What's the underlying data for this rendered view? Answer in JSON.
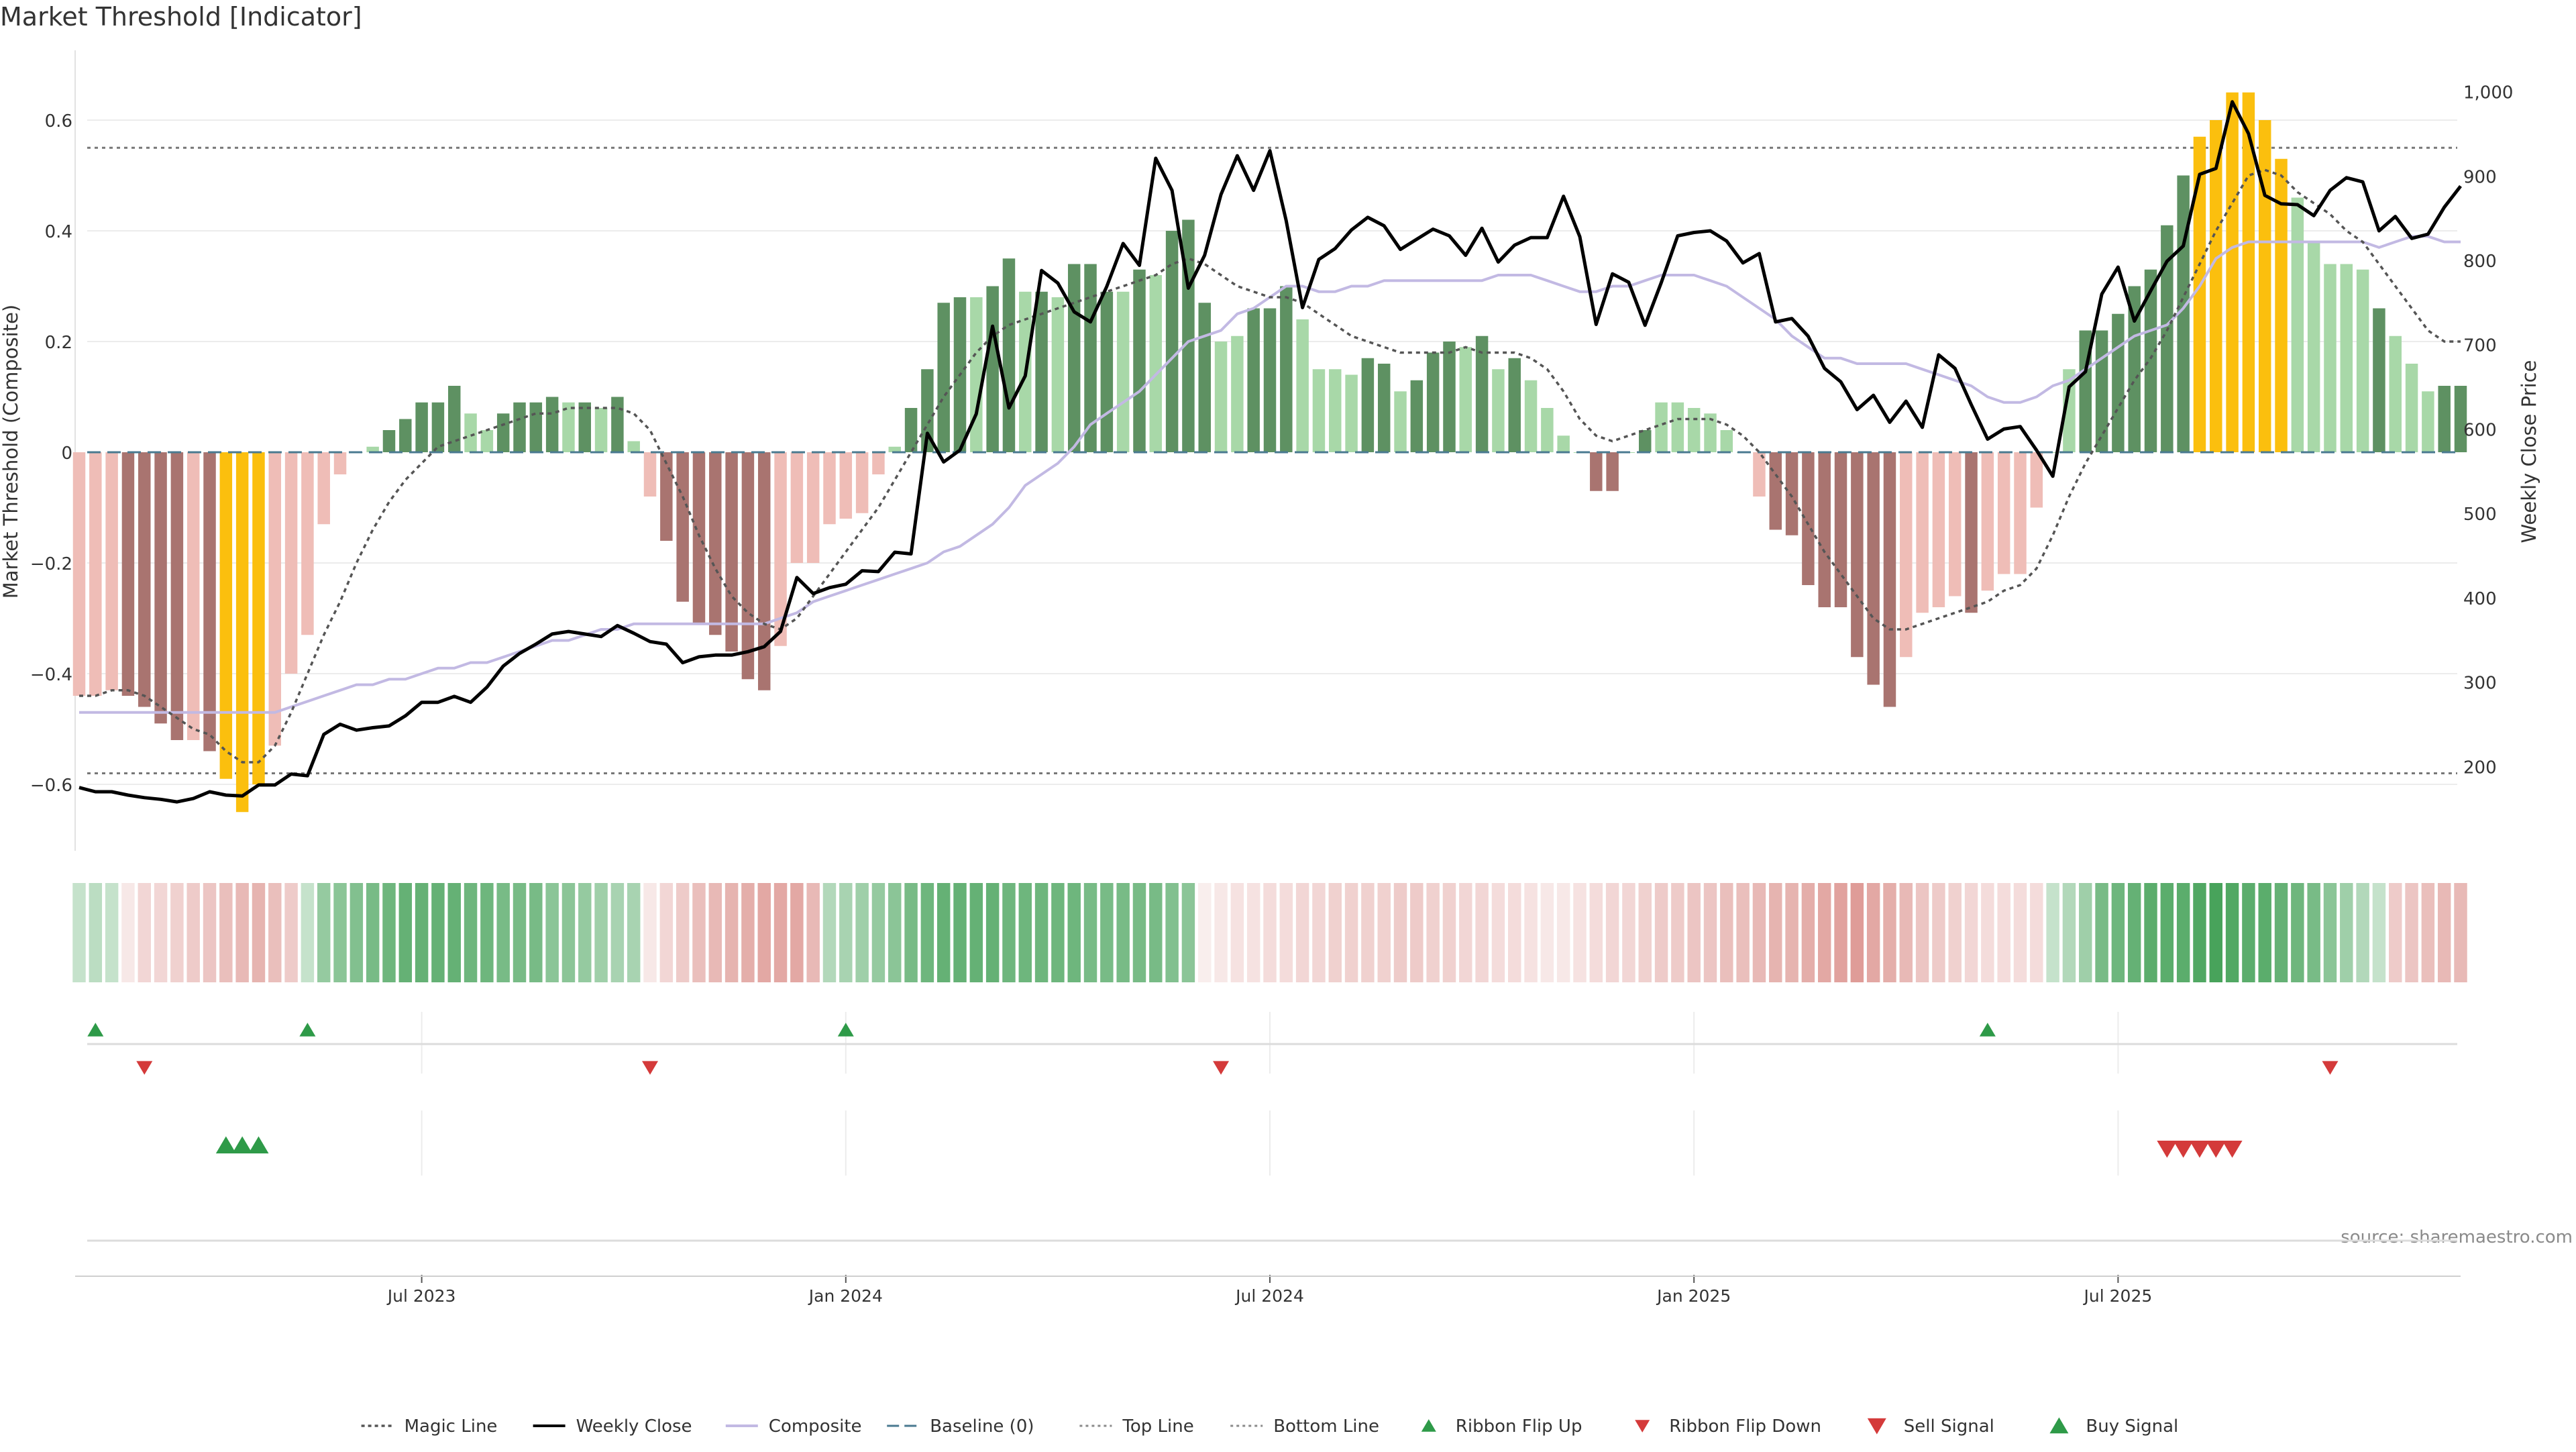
{
  "title": "Market Threshold [Indicator]",
  "source": "source: sharemaestro.com",
  "colors": {
    "strong_green": "#5e9162",
    "light_green": "#a8d8a8",
    "strong_red": "#a97470",
    "light_red": "#efbdb7",
    "extreme": "#fbbf0e",
    "magic_line": "#555555",
    "weekly_close": "#000000",
    "composite": "#c2b9e3",
    "baseline": "#4a7a90",
    "ribbon_green": "#3e9e52",
    "ribbon_red": "#d98b86",
    "signal_green": "#2e9a48",
    "signal_red": "#d43a3a"
  },
  "chart_data": {
    "type": "bar",
    "left_axis": {
      "label": "Market Threshold (Composite)",
      "ylim": [
        -0.72,
        0.72
      ],
      "ticks": [
        -0.6,
        -0.4,
        -0.2,
        0,
        0.2,
        0.4,
        0.6
      ],
      "tick_labels": [
        "−0.6",
        "−0.4",
        "−0.2",
        "0",
        "0.2",
        "0.4",
        "0.6"
      ]
    },
    "right_axis": {
      "label": "Weekly Close Price",
      "ylim": [
        100,
        1045
      ],
      "ticks": [
        200,
        300,
        400,
        500,
        600,
        700,
        800,
        900,
        1000
      ],
      "tick_labels": [
        "200",
        "300",
        "400",
        "500",
        "600",
        "700",
        "800",
        "900",
        "1,000"
      ]
    },
    "x_axis": {
      "unit": "week index (weeks since first bar)",
      "ticks": [
        21,
        47,
        73,
        99,
        125
      ],
      "tick_labels": [
        "Jul 2023",
        "Jan 2024",
        "Jul 2024",
        "Jan 2025",
        "Jul 2025"
      ]
    },
    "top_line": 0.55,
    "bottom_line": -0.58,
    "bars": [
      -0.44,
      -0.44,
      -0.43,
      -0.44,
      -0.46,
      -0.49,
      -0.52,
      -0.52,
      -0.54,
      -0.59,
      -0.65,
      -0.6,
      -0.53,
      -0.4,
      -0.33,
      -0.13,
      -0.04,
      0.0,
      0.01,
      0.04,
      0.06,
      0.09,
      0.09,
      0.12,
      0.07,
      0.04,
      0.07,
      0.09,
      0.09,
      0.1,
      0.09,
      0.09,
      0.08,
      0.1,
      0.02,
      -0.08,
      -0.16,
      -0.27,
      -0.31,
      -0.33,
      -0.36,
      -0.41,
      -0.43,
      -0.35,
      -0.2,
      -0.2,
      -0.13,
      -0.12,
      -0.11,
      -0.04,
      0.01,
      0.08,
      0.15,
      0.27,
      0.28,
      0.28,
      0.3,
      0.35,
      0.29,
      0.29,
      0.28,
      0.34,
      0.34,
      0.29,
      0.29,
      0.33,
      0.32,
      0.4,
      0.42,
      0.27,
      0.2,
      0.21,
      0.26,
      0.26,
      0.3,
      0.24,
      0.15,
      0.15,
      0.14,
      0.17,
      0.16,
      0.11,
      0.13,
      0.18,
      0.2,
      0.19,
      0.21,
      0.15,
      0.17,
      0.13,
      0.08,
      0.03,
      0.0,
      -0.07,
      -0.07,
      0.0,
      0.04,
      0.09,
      0.09,
      0.08,
      0.07,
      0.04,
      0.0,
      -0.08,
      -0.14,
      -0.15,
      -0.24,
      -0.28,
      -0.28,
      -0.37,
      -0.42,
      -0.46,
      -0.37,
      -0.29,
      -0.28,
      -0.26,
      -0.29,
      -0.25,
      -0.22,
      -0.22,
      -0.1,
      0.0,
      0.15,
      0.22,
      0.22,
      0.25,
      0.3,
      0.33,
      0.41,
      0.5,
      0.57,
      0.6,
      0.65,
      0.65,
      0.6,
      0.53,
      0.46,
      0.38,
      0.34,
      0.34,
      0.33,
      0.26,
      0.21,
      0.16,
      0.11,
      0.12,
      0.12
    ],
    "bar_tone": [
      "light",
      "light",
      "light",
      "strong",
      "strong",
      "strong",
      "strong",
      "light",
      "strong",
      "extreme",
      "extreme",
      "extreme",
      "light",
      "light",
      "light",
      "light",
      "light",
      "light",
      "light",
      "strong",
      "strong",
      "strong",
      "strong",
      "strong",
      "light",
      "light",
      "strong",
      "strong",
      "strong",
      "strong",
      "light",
      "strong",
      "light",
      "strong",
      "light",
      "light",
      "strong",
      "strong",
      "strong",
      "strong",
      "strong",
      "strong",
      "strong",
      "light",
      "light",
      "light",
      "light",
      "light",
      "light",
      "light",
      "light",
      "strong",
      "strong",
      "strong",
      "strong",
      "light",
      "strong",
      "strong",
      "light",
      "strong",
      "light",
      "strong",
      "strong",
      "strong",
      "light",
      "strong",
      "light",
      "strong",
      "strong",
      "strong",
      "light",
      "light",
      "strong",
      "strong",
      "strong",
      "light",
      "light",
      "light",
      "light",
      "strong",
      "strong",
      "light",
      "strong",
      "strong",
      "strong",
      "light",
      "strong",
      "light",
      "strong",
      "light",
      "light",
      "light",
      "light",
      "strong",
      "strong",
      "light",
      "strong",
      "light",
      "light",
      "light",
      "light",
      "light",
      "light",
      "light",
      "strong",
      "strong",
      "strong",
      "strong",
      "strong",
      "strong",
      "strong",
      "strong",
      "light",
      "light",
      "light",
      "light",
      "strong",
      "light",
      "light",
      "light",
      "light",
      "light",
      "light",
      "strong",
      "strong",
      "strong",
      "strong",
      "strong",
      "strong",
      "strong",
      "extreme",
      "extreme",
      "extreme",
      "extreme",
      "extreme",
      "extreme",
      "light",
      "light",
      "light",
      "light",
      "light",
      "strong",
      "light",
      "light",
      "light",
      "strong",
      "strong"
    ],
    "magic_line": [
      -0.44,
      -0.44,
      -0.43,
      -0.43,
      -0.44,
      -0.46,
      -0.48,
      -0.5,
      -0.51,
      -0.54,
      -0.56,
      -0.56,
      -0.53,
      -0.47,
      -0.4,
      -0.33,
      -0.27,
      -0.2,
      -0.14,
      -0.09,
      -0.05,
      -0.02,
      0.01,
      0.02,
      0.03,
      0.04,
      0.05,
      0.06,
      0.07,
      0.07,
      0.08,
      0.08,
      0.08,
      0.08,
      0.07,
      0.04,
      -0.02,
      -0.08,
      -0.15,
      -0.21,
      -0.26,
      -0.29,
      -0.31,
      -0.32,
      -0.3,
      -0.26,
      -0.22,
      -0.18,
      -0.14,
      -0.1,
      -0.05,
      0.0,
      0.05,
      0.1,
      0.14,
      0.18,
      0.21,
      0.23,
      0.24,
      0.25,
      0.26,
      0.27,
      0.28,
      0.29,
      0.3,
      0.31,
      0.32,
      0.34,
      0.35,
      0.34,
      0.32,
      0.3,
      0.29,
      0.28,
      0.28,
      0.27,
      0.25,
      0.23,
      0.21,
      0.2,
      0.19,
      0.18,
      0.18,
      0.18,
      0.18,
      0.19,
      0.18,
      0.18,
      0.18,
      0.17,
      0.15,
      0.11,
      0.06,
      0.03,
      0.02,
      0.03,
      0.04,
      0.05,
      0.06,
      0.06,
      0.06,
      0.05,
      0.03,
      0.0,
      -0.04,
      -0.08,
      -0.13,
      -0.18,
      -0.22,
      -0.26,
      -0.3,
      -0.32,
      -0.32,
      -0.31,
      -0.3,
      -0.29,
      -0.28,
      -0.27,
      -0.25,
      -0.24,
      -0.21,
      -0.15,
      -0.08,
      -0.02,
      0.03,
      0.08,
      0.13,
      0.17,
      0.22,
      0.28,
      0.34,
      0.4,
      0.45,
      0.5,
      0.51,
      0.5,
      0.47,
      0.45,
      0.43,
      0.4,
      0.38,
      0.34,
      0.3,
      0.26,
      0.22,
      0.2,
      0.2
    ],
    "composite": [
      -0.47,
      -0.47,
      -0.47,
      -0.47,
      -0.47,
      -0.47,
      -0.47,
      -0.47,
      -0.47,
      -0.47,
      -0.47,
      -0.47,
      -0.47,
      -0.46,
      -0.45,
      -0.44,
      -0.43,
      -0.42,
      -0.42,
      -0.41,
      -0.41,
      -0.4,
      -0.39,
      -0.39,
      -0.38,
      -0.38,
      -0.37,
      -0.36,
      -0.35,
      -0.34,
      -0.34,
      -0.33,
      -0.32,
      -0.32,
      -0.31,
      -0.31,
      -0.31,
      -0.31,
      -0.31,
      -0.31,
      -0.31,
      -0.31,
      -0.31,
      -0.3,
      -0.29,
      -0.27,
      -0.26,
      -0.25,
      -0.24,
      -0.23,
      -0.22,
      -0.21,
      -0.2,
      -0.18,
      -0.17,
      -0.15,
      -0.13,
      -0.1,
      -0.06,
      -0.04,
      -0.02,
      0.01,
      0.05,
      0.07,
      0.09,
      0.11,
      0.14,
      0.17,
      0.2,
      0.21,
      0.22,
      0.25,
      0.26,
      0.28,
      0.3,
      0.3,
      0.29,
      0.29,
      0.3,
      0.3,
      0.31,
      0.31,
      0.31,
      0.31,
      0.31,
      0.31,
      0.31,
      0.32,
      0.32,
      0.32,
      0.31,
      0.3,
      0.29,
      0.29,
      0.3,
      0.3,
      0.31,
      0.32,
      0.32,
      0.32,
      0.31,
      0.3,
      0.28,
      0.26,
      0.24,
      0.21,
      0.19,
      0.17,
      0.17,
      0.16,
      0.16,
      0.16,
      0.16,
      0.15,
      0.14,
      0.13,
      0.12,
      0.1,
      0.09,
      0.09,
      0.1,
      0.12,
      0.13,
      0.15,
      0.17,
      0.19,
      0.21,
      0.22,
      0.23,
      0.26,
      0.3,
      0.35,
      0.37,
      0.38,
      0.38,
      0.38,
      0.38,
      0.38,
      0.38,
      0.38,
      0.38,
      0.37,
      0.38,
      0.39,
      0.39,
      0.38,
      0.38
    ],
    "weekly_close": [
      175,
      170,
      170,
      166,
      163,
      161,
      158,
      162,
      170,
      166,
      165,
      178,
      178,
      191,
      189,
      238,
      250,
      243,
      246,
      248,
      260,
      276,
      276,
      283,
      276,
      294,
      319,
      334,
      345,
      357,
      360,
      357,
      354,
      367,
      358,
      348,
      345,
      323,
      330,
      332,
      332,
      336,
      342,
      360,
      424,
      405,
      412,
      416,
      432,
      431,
      454,
      452,
      595,
      561,
      575,
      618,
      722,
      625,
      663,
      788,
      773,
      739,
      727,
      769,
      820,
      794,
      921,
      883,
      767,
      806,
      878,
      924,
      883,
      930,
      847,
      744,
      801,
      814,
      836,
      851,
      841,
      813,
      825,
      837,
      829,
      806,
      838,
      798,
      818,
      827,
      827,
      876,
      828,
      724,
      784,
      774,
      723,
      774,
      829,
      833,
      835,
      823,
      797,
      808,
      727,
      731,
      710,
      672,
      656,
      623,
      640,
      608,
      633,
      602,
      688,
      672,
      629,
      588,
      600,
      603,
      575,
      544,
      650,
      668,
      760,
      792,
      728,
      764,
      799,
      817,
      902,
      909,
      988,
      950,
      877,
      867,
      866,
      853,
      883,
      898,
      893,
      835,
      852,
      826,
      831,
      863,
      888
    ],
    "ribbon": [
      0.3,
      0.35,
      0.3,
      -0.2,
      -0.35,
      -0.35,
      -0.4,
      -0.45,
      -0.5,
      -0.55,
      -0.6,
      -0.65,
      -0.55,
      -0.45,
      0.3,
      0.55,
      0.6,
      0.65,
      0.7,
      0.75,
      0.8,
      0.8,
      0.8,
      0.8,
      0.75,
      0.75,
      0.7,
      0.7,
      0.7,
      0.6,
      0.6,
      0.55,
      0.5,
      0.45,
      0.45,
      -0.2,
      -0.35,
      -0.45,
      -0.55,
      -0.6,
      -0.65,
      -0.7,
      -0.75,
      -0.75,
      -0.75,
      -0.6,
      0.4,
      0.45,
      0.5,
      0.55,
      0.6,
      0.7,
      0.75,
      0.8,
      0.8,
      0.8,
      0.8,
      0.75,
      0.75,
      0.75,
      0.75,
      0.75,
      0.7,
      0.7,
      0.7,
      0.7,
      0.7,
      0.65,
      0.6,
      -0.15,
      -0.2,
      -0.25,
      -0.25,
      -0.3,
      -0.3,
      -0.35,
      -0.35,
      -0.4,
      -0.4,
      -0.4,
      -0.4,
      -0.45,
      -0.45,
      -0.4,
      -0.4,
      -0.35,
      -0.35,
      -0.3,
      -0.3,
      -0.25,
      -0.2,
      -0.2,
      -0.25,
      -0.3,
      -0.35,
      -0.35,
      -0.4,
      -0.45,
      -0.45,
      -0.5,
      -0.5,
      -0.55,
      -0.55,
      -0.6,
      -0.65,
      -0.65,
      -0.7,
      -0.75,
      -0.8,
      -0.85,
      -0.75,
      -0.7,
      -0.6,
      -0.5,
      -0.45,
      -0.4,
      -0.35,
      -0.3,
      -0.3,
      -0.3,
      -0.3,
      0.3,
      0.4,
      0.5,
      0.7,
      0.75,
      0.8,
      0.85,
      0.85,
      0.85,
      0.9,
      0.95,
      0.9,
      0.85,
      0.85,
      0.8,
      0.75,
      0.7,
      0.6,
      0.5,
      0.4,
      0.3,
      -0.45,
      -0.5,
      -0.55,
      -0.6,
      -0.6
    ],
    "ribbon_flip_up": [
      1,
      14,
      47,
      117
    ],
    "ribbon_flip_down": [
      4,
      35,
      70,
      138
    ],
    "buy_signal": [
      9,
      10,
      11
    ],
    "sell_signal": [
      128,
      129,
      130,
      131,
      132
    ]
  },
  "legend": [
    {
      "label": "Magic Line",
      "symbol": "dotted"
    },
    {
      "label": "Weekly Close",
      "symbol": "line-black"
    },
    {
      "label": "Composite",
      "symbol": "line-lavender"
    },
    {
      "label": "Baseline (0)",
      "symbol": "dashed"
    },
    {
      "label": "Top Line",
      "symbol": "dotted-light"
    },
    {
      "label": "Bottom Line",
      "symbol": "dotted-light"
    },
    {
      "label": "Ribbon Flip Up",
      "symbol": "tri-up-green"
    },
    {
      "label": "Ribbon Flip Down",
      "symbol": "tri-down-red"
    },
    {
      "label": "Sell Signal",
      "symbol": "tri-down-red-big"
    },
    {
      "label": "Buy Signal",
      "symbol": "tri-up-green-big"
    }
  ]
}
